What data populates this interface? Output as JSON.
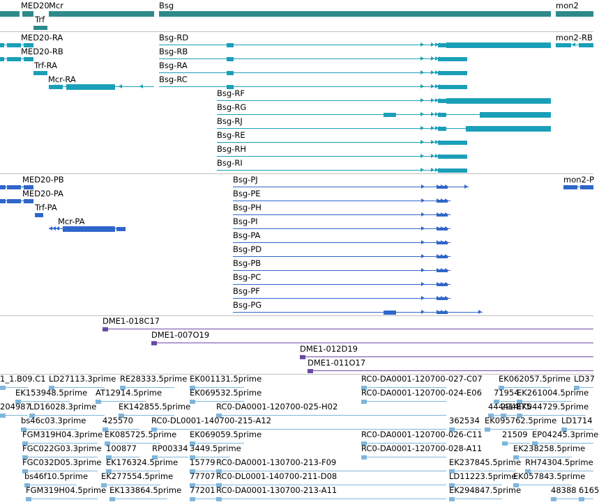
{
  "colors": {
    "gene": "#2e8a8a",
    "rna": "#1a9fb8",
    "protein": "#2f66c9",
    "clone": "#6a4aa6",
    "est": "#7fb6dc",
    "separator": "#bfbfbf"
  },
  "tracks": {
    "gene": {
      "features": [
        {
          "name": "MED20",
          "row": 0
        },
        {
          "name": "Mcr",
          "row": 0
        },
        {
          "name": "Bsg",
          "row": 0
        },
        {
          "name": "mon2",
          "row": 0
        },
        {
          "name": "Trf",
          "row": 1
        }
      ]
    },
    "rna": {
      "features": [
        {
          "name": "MED20-RA"
        },
        {
          "name": "MED20-RB"
        },
        {
          "name": "Trf-RA"
        },
        {
          "name": "Mcr-RA"
        },
        {
          "name": "Bsg-RD"
        },
        {
          "name": "Bsg-RB"
        },
        {
          "name": "Bsg-RA"
        },
        {
          "name": "Bsg-RC"
        },
        {
          "name": "Bsg-RF"
        },
        {
          "name": "Bsg-RG"
        },
        {
          "name": "Bsg-RJ"
        },
        {
          "name": "Bsg-RE"
        },
        {
          "name": "Bsg-RH"
        },
        {
          "name": "Bsg-RI"
        },
        {
          "name": "mon2-RB"
        }
      ]
    },
    "protein": {
      "features": [
        {
          "name": "MED20-PB"
        },
        {
          "name": "MED20-PA"
        },
        {
          "name": "Trf-PA"
        },
        {
          "name": "Mcr-PA"
        },
        {
          "name": "Bsg-PJ"
        },
        {
          "name": "Bsg-PE"
        },
        {
          "name": "Bsg-PH"
        },
        {
          "name": "Bsg-PI"
        },
        {
          "name": "Bsg-PA"
        },
        {
          "name": "Bsg-PD"
        },
        {
          "name": "Bsg-PB"
        },
        {
          "name": "Bsg-PC"
        },
        {
          "name": "Bsg-PF"
        },
        {
          "name": "Bsg-PG"
        },
        {
          "name": "mon2-P"
        }
      ]
    },
    "clone": {
      "features": [
        {
          "name": "DME1-018C17"
        },
        {
          "name": "DME1-007O19"
        },
        {
          "name": "DME1-012D19"
        },
        {
          "name": "DME1-011O17"
        }
      ]
    },
    "est": {
      "features": [
        {
          "name": "1_1.B09.C1"
        },
        {
          "name": "LD27113.3prime"
        },
        {
          "name": "RE28333.5prime"
        },
        {
          "name": "EK001131.5prime"
        },
        {
          "name": "RC0-DA0001-120700-027-C07"
        },
        {
          "name": "EK062057.5prime"
        },
        {
          "name": "LD37"
        },
        {
          "name": "EK153948.5prime"
        },
        {
          "name": "AT12914.5prime"
        },
        {
          "name": "EK069532.5prime"
        },
        {
          "name": "RC0-DA0001-120700-024-E06"
        },
        {
          "name": "71954"
        },
        {
          "name": "EK261004.5prime"
        },
        {
          "name": "204987"
        },
        {
          "name": "LD16028.3prime"
        },
        {
          "name": "EK142855.5prime"
        },
        {
          "name": "RC0-DA0001-120700-025-H02"
        },
        {
          "name": "444414"
        },
        {
          "name": "294375"
        },
        {
          "name": "EK044729.5prime"
        },
        {
          "name": "bs46c03.3prime"
        },
        {
          "name": "425570"
        },
        {
          "name": "RC0-DL0001-140700-215-A12"
        },
        {
          "name": "362534"
        },
        {
          "name": "EK095762.5prime"
        },
        {
          "name": "LD1714"
        },
        {
          "name": "FGM319H04.3prime"
        },
        {
          "name": "EK085725.5prime"
        },
        {
          "name": "EK069059.5prime"
        },
        {
          "name": "RC0-DA0001-120700-026-C11"
        },
        {
          "name": "21509"
        },
        {
          "name": "EP04245.3prime"
        },
        {
          "name": "FGC022G03.3prime"
        },
        {
          "name": "100877"
        },
        {
          "name": "RP00334"
        },
        {
          "name": "3449.5prime"
        },
        {
          "name": "RC0-DA0001-120700-028-A11"
        },
        {
          "name": "EK238258.5prime"
        },
        {
          "name": "FGC032D05.3prime"
        },
        {
          "name": "EK176324.5prime"
        },
        {
          "name": "15779"
        },
        {
          "name": "RC0-DA0001-130700-213-F09"
        },
        {
          "name": "EK237845.5prime"
        },
        {
          "name": "RH74304.5prime"
        },
        {
          "name": "bs46f10.5prime"
        },
        {
          "name": "EK277554.5prime"
        },
        {
          "name": "77707"
        },
        {
          "name": "RC0-DL0001-140700-211-D08"
        },
        {
          "name": "LD11223.5prime"
        },
        {
          "name": "EK057843.5prime"
        },
        {
          "name": "FGM319H04.5prime"
        },
        {
          "name": "EK133864.5prime"
        },
        {
          "name": "77201"
        },
        {
          "name": "RC0-DA0001-130700-213-A11"
        },
        {
          "name": "EK294847.5prime"
        },
        {
          "name": "48388"
        },
        {
          "name": "6165"
        }
      ]
    }
  }
}
